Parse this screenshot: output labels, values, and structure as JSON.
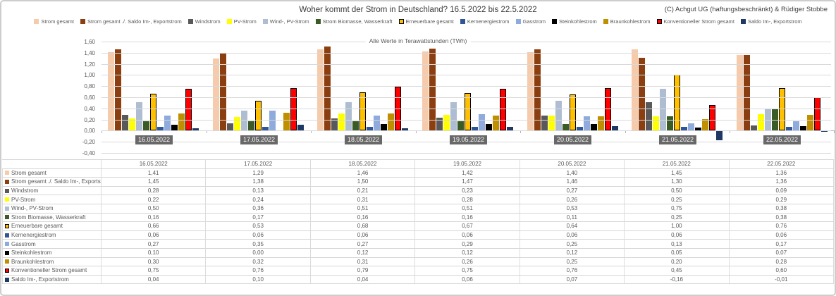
{
  "header": {
    "copyright": "(C) Achgut UG (haftungsbeschränkt) & Rüdiger Stobbe"
  },
  "chart_data": {
    "type": "bar",
    "title": "Woher kommt der Strom in Deutschland? 16.5.2022 bis 22.5.2022",
    "subtitle": "Alle Werte in Terawattstunden (TWh)",
    "unit": "TWh",
    "grid": true,
    "legend_position": "top",
    "ylim": [
      -0.4,
      1.6
    ],
    "ytick_step": 0.2,
    "categories": [
      "16.05.2022",
      "17.05.2022",
      "18.05.2022",
      "19.05.2022",
      "20.05.2022",
      "21.05.2022",
      "22.05.2022"
    ],
    "series": [
      {
        "name": "Strom gesamt",
        "color": "#F6CBAC",
        "outline": false,
        "values": [
          1.41,
          1.29,
          1.46,
          1.42,
          1.4,
          1.45,
          1.36
        ]
      },
      {
        "name": "Strom gesamt ./. Saldo Im-, Exportstrom",
        "color": "#8B3E0F",
        "outline": false,
        "values": [
          1.45,
          1.38,
          1.5,
          1.47,
          1.46,
          1.3,
          1.36
        ]
      },
      {
        "name": "Windstrom",
        "color": "#595959",
        "outline": false,
        "values": [
          0.28,
          0.13,
          0.21,
          0.23,
          0.27,
          0.5,
          0.09
        ]
      },
      {
        "name": "PV-Strom",
        "color": "#FFFF00",
        "outline": false,
        "values": [
          0.22,
          0.24,
          0.31,
          0.28,
          0.26,
          0.25,
          0.29
        ]
      },
      {
        "name": "Wind-, PV-Strom",
        "color": "#AEBDD1",
        "outline": false,
        "values": [
          0.5,
          0.36,
          0.51,
          0.51,
          0.53,
          0.75,
          0.38
        ]
      },
      {
        "name": "Strom Biomasse, Wasserkraft",
        "color": "#3A5B25",
        "outline": false,
        "values": [
          0.16,
          0.17,
          0.16,
          0.16,
          0.11,
          0.25,
          0.38
        ]
      },
      {
        "name": "Erneuerbare gesamt",
        "color": "#FFC000",
        "outline": true,
        "values": [
          0.66,
          0.53,
          0.68,
          0.67,
          0.64,
          1.0,
          0.76
        ]
      },
      {
        "name": "Kernenergiestrom",
        "color": "#2F5597",
        "outline": false,
        "values": [
          0.06,
          0.06,
          0.06,
          0.06,
          0.06,
          0.06,
          0.06
        ]
      },
      {
        "name": "Gasstrom",
        "color": "#8FAADC",
        "outline": false,
        "values": [
          0.27,
          0.35,
          0.27,
          0.29,
          0.25,
          0.13,
          0.17
        ]
      },
      {
        "name": "Steinkohlestrom",
        "color": "#000000",
        "outline": false,
        "values": [
          0.1,
          0.0,
          0.12,
          0.12,
          0.12,
          0.05,
          0.07
        ]
      },
      {
        "name": "Braunkohlestrom",
        "color": "#BF8F00",
        "outline": false,
        "values": [
          0.3,
          0.32,
          0.31,
          0.26,
          0.25,
          0.2,
          0.28
        ]
      },
      {
        "name": "Konventioneller Strom gesamt",
        "color": "#FF0000",
        "outline": true,
        "values": [
          0.75,
          0.76,
          0.79,
          0.75,
          0.76,
          0.45,
          0.6
        ]
      },
      {
        "name": "Saldo Im-, Exportstrom",
        "color": "#1F3864",
        "outline": false,
        "values": [
          0.04,
          0.1,
          0.04,
          0.06,
          0.07,
          -0.16,
          -0.01
        ]
      }
    ]
  }
}
